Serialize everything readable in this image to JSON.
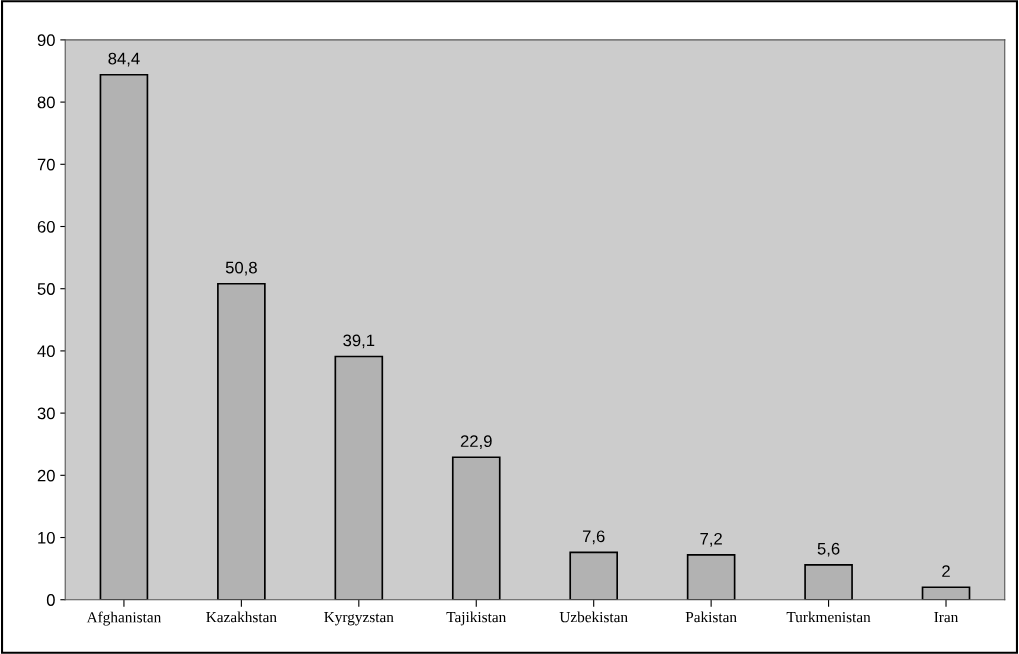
{
  "chart_data": {
    "type": "bar",
    "categories": [
      "Afghanistan",
      "Kazakhstan",
      "Kyrgyzstan",
      "Tajikistan",
      "Uzbekistan",
      "Pakistan",
      "Turkmenistan",
      "Iran"
    ],
    "values": [
      84.4,
      50.8,
      39.1,
      22.9,
      7.6,
      7.2,
      5.6,
      2
    ],
    "value_labels": [
      "84,4",
      "50,8",
      "39,1",
      "22,9",
      "7,6",
      "7,2",
      "5,6",
      "2"
    ],
    "color": "#b2b2b2",
    "ylim": [
      0,
      90
    ],
    "yticks": [
      0,
      10,
      20,
      30,
      40,
      50,
      60,
      70,
      80,
      90
    ],
    "grid": false
  }
}
